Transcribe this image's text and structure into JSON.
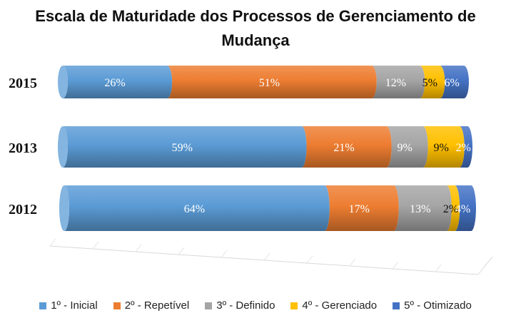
{
  "chart_data": {
    "type": "bar",
    "orientation": "horizontal",
    "stacked": "percent",
    "title": "Escala de Maturidade dos Processos de Gerenciamento de Mudança",
    "categories": [
      "2015",
      "2013",
      "2012"
    ],
    "series": [
      {
        "name": "1º - Inicial",
        "color": "#5B9BD5",
        "values": [
          26,
          59,
          64
        ],
        "labels": [
          "26%",
          "59%",
          "64%"
        ]
      },
      {
        "name": "2º - Repetível",
        "color": "#ED7D31",
        "values": [
          51,
          21,
          17
        ],
        "labels": [
          "51%",
          "21%",
          "17%"
        ]
      },
      {
        "name": "3º - Definido",
        "color": "#A5A5A5",
        "values": [
          12,
          9,
          13
        ],
        "labels": [
          "12%",
          "9%",
          "13%"
        ]
      },
      {
        "name": "4º - Gerenciado",
        "color": "#FFC000",
        "values": [
          5,
          9,
          2
        ],
        "labels": [
          "5%",
          "9%",
          "2%"
        ]
      },
      {
        "name": "5º - Otimizado",
        "color": "#4472C4",
        "values": [
          6,
          2,
          4
        ],
        "labels": [
          "6%",
          "2%",
          "4%"
        ]
      }
    ],
    "legend_position": "bottom",
    "grid": false
  }
}
